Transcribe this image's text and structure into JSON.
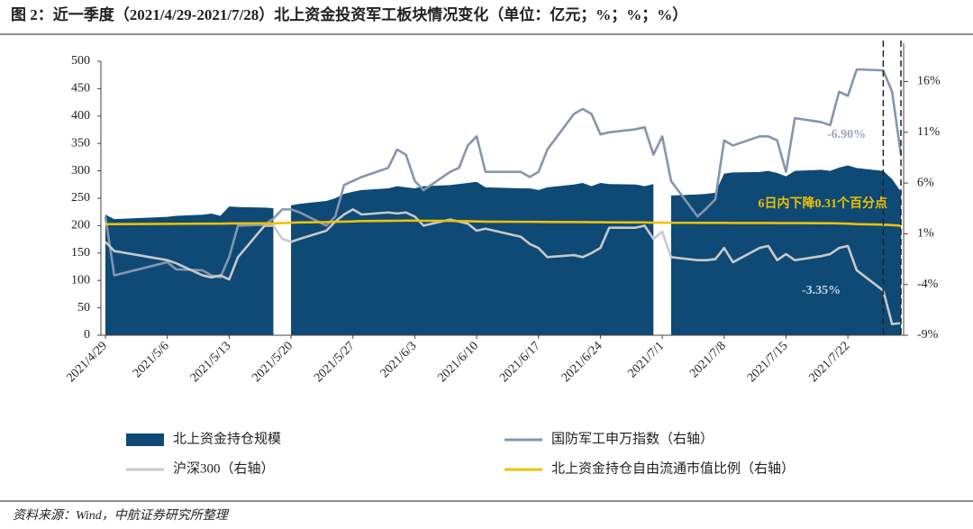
{
  "chart_data": {
    "type": "combo",
    "title": "图 2：近一季度（2021/4/29-2021/7/28）北上资金投资军工板块情况变化（单位：亿元；%；%；%）",
    "source": "资料来源：Wind，中航证券研究所整理",
    "x": [
      "2021/4/29",
      "2021/4/30",
      "2021/5/6",
      "2021/5/7",
      "2021/5/10",
      "2021/5/11",
      "2021/5/12",
      "2021/5/13",
      "2021/5/14",
      "2021/5/17",
      "2021/5/18",
      "2021/5/19",
      "2021/5/20",
      "2021/5/21",
      "2021/5/24",
      "2021/5/25",
      "2021/5/26",
      "2021/5/27",
      "2021/5/28",
      "2021/5/31",
      "2021/6/1",
      "2021/6/2",
      "2021/6/3",
      "2021/6/4",
      "2021/6/7",
      "2021/6/8",
      "2021/6/9",
      "2021/6/10",
      "2021/6/11",
      "2021/6/15",
      "2021/6/16",
      "2021/6/17",
      "2021/6/18",
      "2021/6/21",
      "2021/6/22",
      "2021/6/23",
      "2021/6/24",
      "2021/6/25",
      "2021/6/28",
      "2021/6/29",
      "2021/6/30",
      "2021/7/1",
      "2021/7/2",
      "2021/7/5",
      "2021/7/6",
      "2021/7/7",
      "2021/7/8",
      "2021/7/9",
      "2021/7/12",
      "2021/7/13",
      "2021/7/14",
      "2021/7/15",
      "2021/7/16",
      "2021/7/19",
      "2021/7/20",
      "2021/7/21",
      "2021/7/22",
      "2021/7/23",
      "2021/7/26",
      "2021/7/27",
      "2021/7/28"
    ],
    "xlim": [
      "2021/4/29",
      "2021/7/28"
    ],
    "xticks": [
      "2021/4/29",
      "2021/5/6",
      "2021/5/13",
      "2021/5/20",
      "2021/5/27",
      "2021/6/3",
      "2021/6/10",
      "2021/6/17",
      "2021/6/24",
      "2021/7/1",
      "2021/7/8",
      "2021/7/15",
      "2021/7/22"
    ],
    "ylim": [
      0,
      500
    ],
    "yticks": [
      0,
      50,
      100,
      150,
      200,
      250,
      300,
      350,
      400,
      450,
      500
    ],
    "y2lim": [
      -9,
      18
    ],
    "y2ticks": [
      {
        "value": -9,
        "label": "-9%"
      },
      {
        "value": -4,
        "label": "-4%"
      },
      {
        "value": 1,
        "label": "1%"
      },
      {
        "value": 6,
        "label": "6%"
      },
      {
        "value": 11,
        "label": "11%"
      },
      {
        "value": 16,
        "label": "16%"
      }
    ],
    "series": [
      {
        "name": "北上资金持仓规模",
        "type": "area",
        "color": "#0e4a75",
        "values": [
          220,
          212,
          216,
          218,
          220,
          222,
          218,
          235,
          234,
          233,
          232,
          null,
          237,
          240,
          245,
          250,
          258,
          262,
          265,
          268,
          272,
          270,
          268,
          272,
          274,
          276,
          278,
          280,
          270,
          268,
          268,
          265,
          270,
          275,
          278,
          272,
          278,
          276,
          275,
          272,
          276,
          null,
          255,
          257,
          258,
          260,
          295,
          297,
          298,
          300,
          296,
          290,
          300,
          302,
          300,
          306,
          310,
          305,
          300,
          285,
          262
        ]
      },
      {
        "name": "国防军工申万指数（右轴）",
        "type": "line",
        "axis": "y2",
        "color": "#8496ae",
        "values": [
          2.7,
          -3.1,
          -1.8,
          -2.5,
          -2.6,
          -3.1,
          -3.3,
          -1.3,
          1.8,
          1.9,
          2.5,
          3.4,
          3.4,
          3.1,
          1.8,
          2.7,
          5.8,
          6.2,
          6.6,
          7.5,
          9.3,
          8.8,
          6.2,
          5.3,
          7.1,
          7.5,
          9.7,
          10.6,
          7.1,
          7.1,
          6.6,
          7.1,
          9.3,
          12.8,
          13.3,
          12.8,
          10.8,
          11.0,
          11.3,
          11.5,
          8.8,
          10.6,
          6.2,
          2.7,
          3.5,
          4.4,
          10.2,
          9.7,
          10.6,
          10.6,
          10.2,
          7.1,
          12.4,
          12.0,
          11.7,
          15.0,
          14.6,
          17.2,
          17.1,
          15.0,
          8.8
        ]
      },
      {
        "name": "沪深300（右轴）",
        "type": "line",
        "axis": "y2",
        "color": "#c9c9c9",
        "values": [
          0.2,
          -0.7,
          -1.6,
          -1.9,
          -3.1,
          -3.3,
          -3.1,
          -3.5,
          -1.3,
          1.8,
          1.8,
          0.5,
          0.2,
          0.5,
          1.3,
          2.2,
          2.9,
          3.4,
          2.9,
          3.1,
          3.0,
          3.1,
          2.7,
          1.8,
          2.4,
          2.2,
          2.0,
          1.3,
          1.5,
          0.7,
          0,
          -0.4,
          -1.3,
          -1.1,
          -1.3,
          -0.9,
          -0.4,
          1.6,
          1.6,
          1.8,
          0.5,
          1.2,
          -1.3,
          -1.6,
          -1.6,
          -1.5,
          -0.4,
          -1.8,
          -0.4,
          -0.2,
          -1.6,
          -1.0,
          -1.6,
          -1.2,
          -1.0,
          -0.4,
          -0.2,
          -2.6,
          -4.6,
          -7.9,
          -7.8
        ]
      },
      {
        "name": "北上资金持仓自由流通市值比例（右轴）",
        "type": "line",
        "axis": "y2",
        "color": "#f0c000",
        "values": [
          1.95,
          1.95,
          1.97,
          1.98,
          2.0,
          2.0,
          2.0,
          2.02,
          2.02,
          2.03,
          2.03,
          2.05,
          2.1,
          2.12,
          2.15,
          2.18,
          2.2,
          2.22,
          2.25,
          2.27,
          2.28,
          2.3,
          2.3,
          2.28,
          2.27,
          2.25,
          2.24,
          2.22,
          2.2,
          2.18,
          2.18,
          2.17,
          2.16,
          2.15,
          2.15,
          2.14,
          2.14,
          2.13,
          2.12,
          2.12,
          2.1,
          2.1,
          2.08,
          2.08,
          2.07,
          2.07,
          2.07,
          2.06,
          2.06,
          2.06,
          2.05,
          2.05,
          2.05,
          2.04,
          2.04,
          2.02,
          2.0,
          1.95,
          1.9,
          1.85,
          1.8
        ]
      }
    ],
    "vlines": [
      "2021/7/26",
      "2021/7/28"
    ],
    "annotations": [
      {
        "text": "-6.90%",
        "color": "#9aa6b8"
      },
      {
        "text": "-3.35%",
        "color": "#c9d6e4"
      },
      {
        "text": "6日内下降0.31个百分点",
        "color": "#f0c000"
      }
    ]
  }
}
